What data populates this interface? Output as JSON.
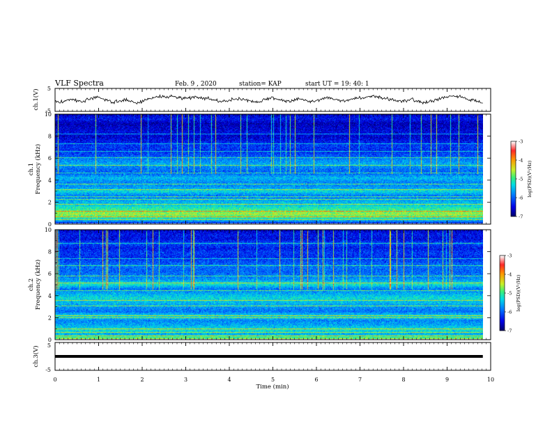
{
  "header": {
    "title": "VLF Spectra",
    "date": "Feb. 9 , 2020",
    "station": "station= KAP",
    "start": "start UT =  19: 40: 1"
  },
  "chart_data": [
    {
      "type": "line",
      "name": "ch1-voltage",
      "ylabel": "ch.1(V)",
      "ylim": [
        -5,
        5
      ],
      "yticks": [
        "5",
        "-5"
      ],
      "xlim": [
        0,
        10
      ],
      "x_end": 9.82,
      "color": "#000000",
      "pattern": "noisy signal fluctuating between about -1.8 V and +1.8 V",
      "values": [
        -0.6,
        -1.2,
        -0.2,
        0.4,
        -0.4,
        -0.9,
        0.2,
        0.8,
        1.0,
        0.3,
        -0.5,
        -1.0,
        -0.6,
        0.1,
        -0.4,
        -1.4,
        -0.8,
        0.3,
        0.9,
        1.3,
        1.6,
        1.2,
        1.4,
        1.1,
        0.7,
        0.9,
        1.5,
        1.2,
        0.6,
        0.2,
        -0.3,
        -0.8,
        -0.4,
        0.3,
        0.6,
        0.1,
        -0.5,
        -0.9,
        -0.6,
        0.3,
        0.9,
        0.5,
        -0.2,
        -0.7,
        0.1,
        0.6,
        -0.1,
        -0.8,
        -0.5,
        0.4,
        0.9,
        0.6,
        0.1,
        -0.4,
        -0.2,
        0.5,
        1.1,
        0.8,
        1.3,
        1.6,
        1.2,
        0.7,
        0.3,
        -0.2,
        -0.6,
        -0.3,
        0.1,
        -0.5,
        -1.0,
        -0.7,
        -0.2,
        0.4,
        0.9,
        1.3,
        1.7,
        1.2,
        0.5,
        -0.1,
        -0.6,
        -1.1
      ]
    },
    {
      "type": "heatmap",
      "name": "ch1-spectrogram",
      "ylabel_channel": "ch.1",
      "ylabel": "Frequency (kHz)",
      "ylim": [
        0,
        10
      ],
      "yticks": [
        "0",
        "2",
        "4",
        "6",
        "8",
        "10"
      ],
      "xlim": [
        0,
        10
      ],
      "x_end": 9.82,
      "seed": 7,
      "z": [
        -6.2,
        -5.2,
        -4.6,
        -5.0,
        -5.4,
        -5.6,
        -5.9,
        -5.3,
        -5.7,
        -5.8,
        -5.5,
        -6.0,
        -5.9,
        -5.6,
        -5.8,
        -6.1,
        -6.3,
        -6.2,
        -6.4,
        -6.6,
        -6.5,
        -6.6,
        -6.7,
        -6.4,
        -6.6
      ],
      "lines_khz": [
        0.3,
        0.6,
        1.1,
        1.7,
        2.2,
        2.45,
        3.1,
        3.6,
        4.6,
        5.3,
        6.0,
        6.6,
        7.3,
        8.2
      ],
      "colorbar": {
        "label": "log(PSD)(V²/Hz)",
        "range": [
          -7,
          -3
        ],
        "ticks": [
          "-3",
          "-4",
          "-5",
          "-6",
          "-7"
        ]
      }
    },
    {
      "type": "heatmap",
      "name": "ch2-spectrogram",
      "ylabel_channel": "ch.2",
      "ylabel": "Frequency (kHz)",
      "ylim": [
        0,
        10
      ],
      "yticks": [
        "0",
        "2",
        "4",
        "6",
        "8",
        "10"
      ],
      "xlim": [
        0,
        10
      ],
      "x_end": 9.82,
      "seed": 19,
      "z": [
        -4.7,
        -5.6,
        -5.2,
        -5.6,
        -5.8,
        -5.3,
        -5.9,
        -5.7,
        -5.5,
        -5.3,
        -5.6,
        -5.9,
        -5.2,
        -5.7,
        -5.9,
        -6.0,
        -5.9,
        -6.1,
        -6.3,
        -6.2,
        -6.4,
        -6.1,
        -6.5,
        -6.4,
        -6.6
      ],
      "lines_khz": [
        0.25,
        0.6,
        0.9,
        1.9,
        2.1,
        3.0,
        3.5,
        4.4,
        5.1,
        5.8,
        6.7,
        7.4,
        8.8
      ],
      "colorbar": {
        "label": "log(PSD)(V²/Hz)",
        "range": [
          -7,
          -3
        ],
        "ticks": [
          "-3",
          "-4",
          "-5",
          "-6",
          "-7"
        ]
      }
    },
    {
      "type": "line",
      "name": "ch3-voltage",
      "ylabel": "ch.3(V)",
      "ylim": [
        -5,
        5
      ],
      "yticks": [
        "5",
        "-5"
      ],
      "xlim": [
        0,
        10
      ],
      "x_end": 9.82,
      "color": "#000000",
      "values": [
        0,
        0
      ]
    }
  ],
  "xaxis": {
    "label": "Time (min)",
    "ticks": [
      "0",
      "1",
      "2",
      "3",
      "4",
      "5",
      "6",
      "7",
      "8",
      "9",
      "10"
    ]
  }
}
